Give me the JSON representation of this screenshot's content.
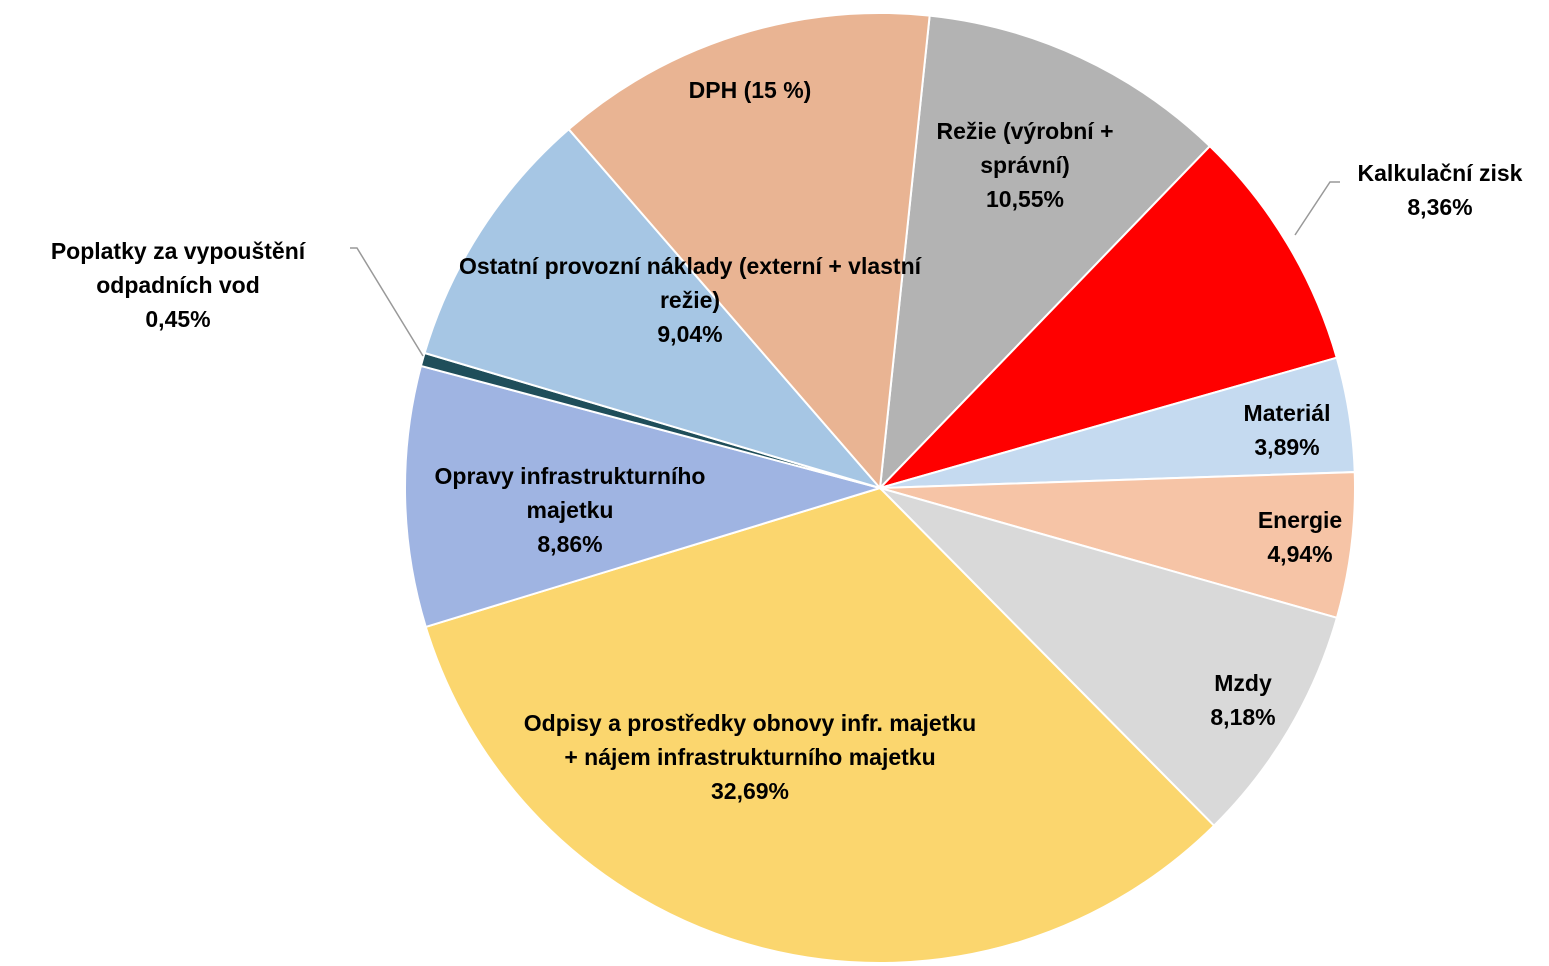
{
  "chart_data": {
    "type": "pie",
    "categories": [
      "Režie (výrobní + správní)",
      "Kalkulační zisk",
      "Materiál",
      "Energie",
      "Mzdy",
      "Odpisy a prostředky obnovy infr. majetku + nájem infrastrukturního majetku",
      "Opravy infrastrukturního majetku",
      "Poplatky za vypouštění odpadních vod",
      "Ostatní provozní náklady (externí + vlastní režie)",
      "DPH (15 %)"
    ],
    "values": [
      10.55,
      8.36,
      3.89,
      4.94,
      8.18,
      32.69,
      8.86,
      0.45,
      9.04,
      13.04
    ],
    "value_labels": [
      "10,55%",
      "8,36%",
      "3,89%",
      "4,94%",
      "8,18%",
      "32,69%",
      "8,86%",
      "0,45%",
      "9,04%",
      null
    ],
    "colors": [
      "#b3b3b3",
      "#ff0000",
      "#c5daf0",
      "#f6c4a6",
      "#d9d9d9",
      "#fbd66e",
      "#9fb4e2",
      "#1f4e5a",
      "#a6c6e4",
      "#e9b493"
    ]
  }
}
